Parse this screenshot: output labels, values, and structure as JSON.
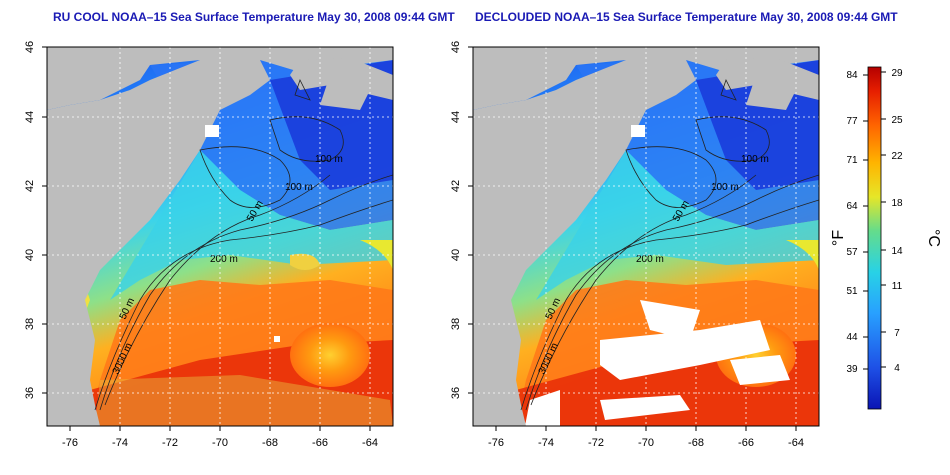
{
  "titles": {
    "left": "RU COOL NOAA–15 Sea Surface Temperature May 30, 2008 09:44 GMT",
    "right": "DECLOUDED NOAA–15 Sea Surface Temperature May 30, 2008 09:44 GMT"
  },
  "axes": {
    "lat_ticks": [
      "46",
      "44",
      "42",
      "40",
      "38",
      "36"
    ],
    "lon_ticks": [
      "-76",
      "-74",
      "-72",
      "-70",
      "-68",
      "-66",
      "-64"
    ]
  },
  "contours": {
    "labels": [
      "100 m",
      "100 m",
      "50 m",
      "200 m",
      "50 m",
      "3000 m"
    ]
  },
  "colorbar": {
    "fahrenheit_label": "°F",
    "celsius_label": "°C",
    "fahrenheit_ticks": [
      "84",
      "77",
      "71",
      "64",
      "57",
      "51",
      "44",
      "39"
    ],
    "celsius_ticks": [
      "29",
      "25",
      "22",
      "18",
      "14",
      "11",
      "7",
      "4"
    ]
  },
  "colors": {
    "land": "#bdbdbd",
    "cloud": "#ffffff",
    "title": "#1a1ab4",
    "coldest": "#0a14b4",
    "warmest": "#b40000"
  }
}
